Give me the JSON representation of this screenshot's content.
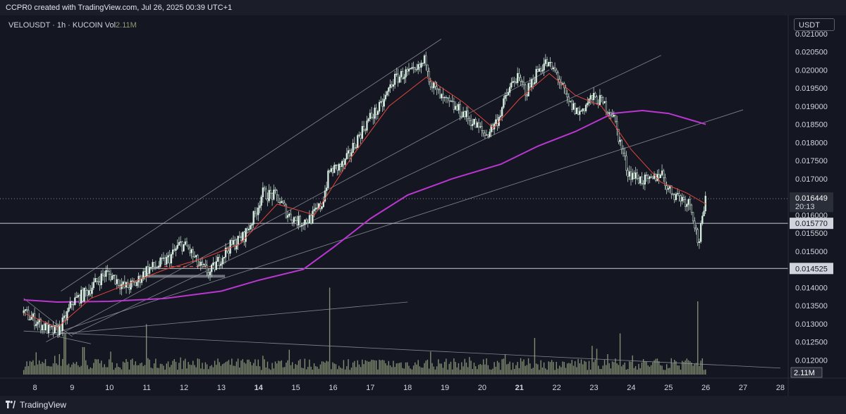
{
  "header": {
    "title": "CCPR0 created with TradingView.com, Jul 26, 2025 00:39 UTC+1"
  },
  "legend": {
    "symbol": "VELOUSDT · 1h · KUCOIN",
    "vol_label": "Vol",
    "vol_value": "2.11M"
  },
  "price_axis": {
    "unit": "USDT"
  },
  "footer": {
    "brand": "TradingView"
  },
  "icons": {
    "logo": "tradingview-logo-icon"
  },
  "colors": {
    "background": "#141722",
    "candle": "#d7eee0",
    "ma_fast": "#e0463a",
    "ma_slow": "#b937d0",
    "volume": "#a6b48c",
    "lines": "#9598a1"
  },
  "chart_data": {
    "type": "candlestick",
    "symbol": "VELOUSDT",
    "interval": "1h",
    "exchange": "KUCOIN",
    "ylim": [
      0.0116,
      0.0215
    ],
    "x_ticks": [
      {
        "day": 8,
        "label": "8",
        "bold": false
      },
      {
        "day": 9,
        "label": "9",
        "bold": false
      },
      {
        "day": 10,
        "label": "10",
        "bold": false
      },
      {
        "day": 11,
        "label": "11",
        "bold": false
      },
      {
        "day": 12,
        "label": "12",
        "bold": false
      },
      {
        "day": 13,
        "label": "13",
        "bold": false
      },
      {
        "day": 14,
        "label": "14",
        "bold": true
      },
      {
        "day": 15,
        "label": "15",
        "bold": false
      },
      {
        "day": 16,
        "label": "16",
        "bold": false
      },
      {
        "day": 17,
        "label": "17",
        "bold": false
      },
      {
        "day": 18,
        "label": "18",
        "bold": false
      },
      {
        "day": 19,
        "label": "19",
        "bold": false
      },
      {
        "day": 20,
        "label": "20",
        "bold": false
      },
      {
        "day": 21,
        "label": "21",
        "bold": true
      },
      {
        "day": 22,
        "label": "22",
        "bold": false
      },
      {
        "day": 23,
        "label": "23",
        "bold": false
      },
      {
        "day": 24,
        "label": "24",
        "bold": false
      },
      {
        "day": 25,
        "label": "25",
        "bold": false
      },
      {
        "day": 26,
        "label": "26",
        "bold": false
      },
      {
        "day": 27,
        "label": "27",
        "bold": false
      },
      {
        "day": 28,
        "label": "28",
        "bold": false
      }
    ],
    "y_ticks": [
      "0.021000",
      "0.020500",
      "0.020000",
      "0.019500",
      "0.019000",
      "0.018500",
      "0.018000",
      "0.017500",
      "0.017000",
      "0.016000",
      "0.015500",
      "0.015000",
      "0.014000",
      "0.013500",
      "0.013000",
      "0.012500",
      "0.012000"
    ],
    "y_tick_values": [
      0.021,
      0.0205,
      0.02,
      0.0195,
      0.019,
      0.0185,
      0.018,
      0.0175,
      0.017,
      0.016,
      0.0155,
      0.015,
      0.014,
      0.0135,
      0.013,
      0.0125,
      0.012
    ],
    "price_path": [
      [
        7.7,
        0.0133
      ],
      [
        8.0,
        0.0131
      ],
      [
        8.4,
        0.0128
      ],
      [
        8.6,
        0.0128
      ],
      [
        8.8,
        0.0131
      ],
      [
        9.0,
        0.0136
      ],
      [
        9.3,
        0.0138
      ],
      [
        9.6,
        0.0141
      ],
      [
        9.9,
        0.0144
      ],
      [
        10.1,
        0.0143
      ],
      [
        10.4,
        0.014
      ],
      [
        10.7,
        0.0141
      ],
      [
        11.0,
        0.0145
      ],
      [
        11.3,
        0.0146
      ],
      [
        11.6,
        0.0148
      ],
      [
        11.9,
        0.0152
      ],
      [
        12.1,
        0.0151
      ],
      [
        12.4,
        0.0146
      ],
      [
        12.7,
        0.0144
      ],
      [
        12.9,
        0.0147
      ],
      [
        13.2,
        0.0151
      ],
      [
        13.6,
        0.0154
      ],
      [
        13.9,
        0.016
      ],
      [
        14.1,
        0.0166
      ],
      [
        14.5,
        0.0165
      ],
      [
        14.8,
        0.016
      ],
      [
        15.1,
        0.0158
      ],
      [
        15.4,
        0.0159
      ],
      [
        15.7,
        0.0163
      ],
      [
        15.9,
        0.0172
      ],
      [
        16.3,
        0.0174
      ],
      [
        16.7,
        0.0182
      ],
      [
        17.0,
        0.0187
      ],
      [
        17.3,
        0.019
      ],
      [
        17.6,
        0.0197
      ],
      [
        17.9,
        0.0199
      ],
      [
        18.2,
        0.0199
      ],
      [
        18.5,
        0.0203
      ],
      [
        18.6,
        0.0197
      ],
      [
        18.9,
        0.0192
      ],
      [
        19.2,
        0.019
      ],
      [
        19.5,
        0.0188
      ],
      [
        19.8,
        0.0185
      ],
      [
        20.1,
        0.0182
      ],
      [
        20.4,
        0.0186
      ],
      [
        20.7,
        0.0194
      ],
      [
        20.9,
        0.0198
      ],
      [
        21.2,
        0.0194
      ],
      [
        21.5,
        0.02
      ],
      [
        21.7,
        0.0202
      ],
      [
        22.0,
        0.0199
      ],
      [
        22.3,
        0.0191
      ],
      [
        22.6,
        0.0188
      ],
      [
        22.9,
        0.0192
      ],
      [
        23.1,
        0.0192
      ],
      [
        23.5,
        0.0188
      ],
      [
        23.7,
        0.018
      ],
      [
        23.9,
        0.0172
      ],
      [
        24.2,
        0.017
      ],
      [
        24.5,
        0.0169
      ],
      [
        24.8,
        0.0172
      ],
      [
        25.0,
        0.0167
      ],
      [
        25.3,
        0.0165
      ],
      [
        25.6,
        0.0163
      ],
      [
        25.8,
        0.0152
      ],
      [
        26.0,
        0.0164
      ]
    ],
    "ma_fast": [
      [
        7.7,
        0.0133
      ],
      [
        8.6,
        0.0129
      ],
      [
        9.5,
        0.0137
      ],
      [
        10.5,
        0.0141
      ],
      [
        11.5,
        0.0145
      ],
      [
        12.5,
        0.0148
      ],
      [
        13.5,
        0.0152
      ],
      [
        14.5,
        0.0163
      ],
      [
        15.5,
        0.016
      ],
      [
        16.5,
        0.0176
      ],
      [
        17.5,
        0.019
      ],
      [
        18.5,
        0.0198
      ],
      [
        19.5,
        0.0191
      ],
      [
        20.3,
        0.0184
      ],
      [
        21.0,
        0.0192
      ],
      [
        21.8,
        0.0199
      ],
      [
        22.5,
        0.0193
      ],
      [
        23.2,
        0.019
      ],
      [
        24.0,
        0.0178
      ],
      [
        24.8,
        0.0169
      ],
      [
        25.5,
        0.0166
      ],
      [
        26.0,
        0.0163
      ]
    ],
    "ma_slow": [
      [
        7.7,
        0.01366
      ],
      [
        8.6,
        0.0136
      ],
      [
        10.0,
        0.01362
      ],
      [
        11.5,
        0.0137
      ],
      [
        13.0,
        0.0139
      ],
      [
        14.0,
        0.0142
      ],
      [
        15.2,
        0.0145
      ],
      [
        16.0,
        0.0151
      ],
      [
        17.0,
        0.0159
      ],
      [
        18.0,
        0.01655
      ],
      [
        19.2,
        0.017
      ],
      [
        20.5,
        0.0174
      ],
      [
        21.5,
        0.0179
      ],
      [
        22.5,
        0.0183
      ],
      [
        23.5,
        0.0188
      ],
      [
        24.3,
        0.01888
      ],
      [
        25.0,
        0.0188
      ],
      [
        25.6,
        0.01862
      ],
      [
        26.0,
        0.0185
      ]
    ],
    "horizontal_levels": [
      {
        "price": 0.01577,
        "label": "0.015770"
      },
      {
        "price": 0.014525,
        "label": "0.014525"
      }
    ],
    "last_price": {
      "price": 0.016449,
      "label": "0.016449",
      "countdown": "20:13"
    },
    "volume_label": "2.11M",
    "volume_spikes": [
      {
        "day": 8.8,
        "vol": 0.45
      },
      {
        "day": 9.3,
        "vol": 0.3
      },
      {
        "day": 11.0,
        "vol": 0.55
      },
      {
        "day": 15.9,
        "vol": 0.95
      },
      {
        "day": 18.6,
        "vol": 0.25
      },
      {
        "day": 21.4,
        "vol": 0.4
      },
      {
        "day": 23.7,
        "vol": 0.45
      },
      {
        "day": 25.8,
        "vol": 0.8
      }
    ],
    "trendlines": [
      [
        [
          8.7,
          0.0139
        ],
        [
          18.9,
          0.02085
        ]
      ],
      [
        [
          8.3,
          0.0125
        ],
        [
          21.8,
          0.02
        ]
      ],
      [
        [
          9.0,
          0.0127
        ],
        [
          24.8,
          0.0204
        ]
      ],
      [
        [
          8.4,
          0.0127
        ],
        [
          27.0,
          0.0189
        ]
      ],
      [
        [
          7.7,
          0.0137
        ],
        [
          9.0,
          0.01265
        ]
      ],
      [
        [
          8.4,
          0.0127
        ],
        [
          18.0,
          0.0136
        ]
      ],
      [
        [
          7.7,
          0.0128
        ],
        [
          28.0,
          0.01178
        ]
      ],
      [
        [
          8.6,
          0.01265
        ],
        [
          9.5,
          0.01245
        ]
      ]
    ]
  }
}
